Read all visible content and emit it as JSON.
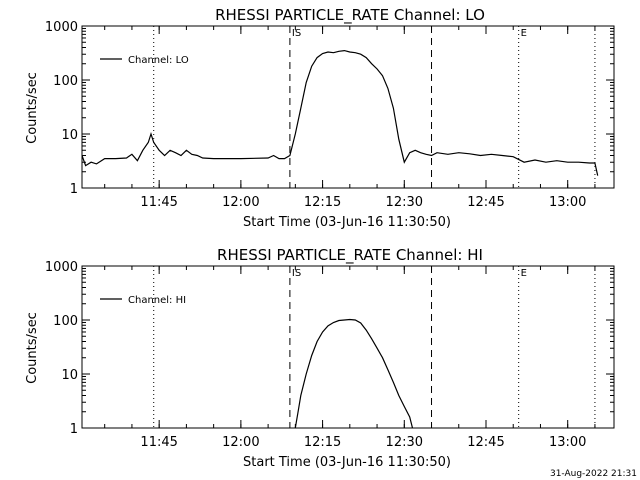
{
  "footer": {
    "timestamp": "31-Aug-2022 21:31"
  },
  "chart_data": [
    {
      "type": "line",
      "title": "RHESSI PARTICLE_RATE Channel: LO",
      "xlabel": "Start Time (03-Jun-16 11:30:50)",
      "ylabel": "Counts/sec",
      "yscale": "log",
      "ylim": [
        1,
        1000
      ],
      "xlim": [
        "11:30:50",
        "13:08:30"
      ],
      "x_ticks": [
        "11:45",
        "12:00",
        "12:15",
        "12:30",
        "12:45",
        "13:00"
      ],
      "y_ticks": [
        "1",
        "10",
        "100",
        "1000"
      ],
      "legend": {
        "position": "top-left",
        "entries": [
          "Channel: LO"
        ]
      },
      "markers": [
        {
          "label": "IS",
          "time": "12:09:00",
          "style": "dashed"
        },
        {
          "label": "",
          "time": "12:35:00",
          "style": "dashed"
        },
        {
          "label": "",
          "time": "11:44:00",
          "style": "dotted"
        },
        {
          "label": "E",
          "time": "12:51:00",
          "style": "dotted"
        },
        {
          "label": "",
          "time": "13:05:00",
          "style": "dotted"
        }
      ],
      "series": [
        {
          "name": "Channel: LO",
          "x": [
            "11:30:50",
            "11:31:30",
            "11:32:30",
            "11:33:30",
            "11:35:00",
            "11:37:00",
            "11:39:00",
            "11:40:00",
            "11:41:00",
            "11:42:00",
            "11:43:00",
            "11:43:30",
            "11:44:00",
            "11:45:00",
            "11:46:00",
            "11:47:00",
            "11:48:00",
            "11:49:00",
            "11:50:00",
            "11:51:00",
            "11:52:00",
            "11:53:00",
            "11:55:00",
            "12:00:00",
            "12:05:00",
            "12:06:00",
            "12:07:00",
            "12:08:00",
            "12:09:00",
            "12:10:00",
            "12:11:00",
            "12:12:00",
            "12:13:00",
            "12:14:00",
            "12:15:00",
            "12:16:00",
            "12:17:00",
            "12:18:00",
            "12:19:00",
            "12:20:00",
            "12:21:00",
            "12:22:00",
            "12:23:00",
            "12:24:00",
            "12:25:00",
            "12:26:00",
            "12:27:00",
            "12:28:00",
            "12:29:00",
            "12:30:00",
            "12:31:00",
            "12:32:00",
            "12:33:00",
            "12:34:00",
            "12:35:00",
            "12:36:00",
            "12:38:00",
            "12:40:00",
            "12:42:00",
            "12:44:00",
            "12:46:00",
            "12:48:00",
            "12:50:00",
            "12:52:00",
            "12:54:00",
            "12:56:00",
            "12:58:00",
            "13:00:00",
            "13:02:00",
            "13:04:00",
            "13:05:00",
            "13:05:30"
          ],
          "y": [
            4,
            2.6,
            3,
            2.8,
            3.5,
            3.5,
            3.6,
            4.2,
            3.2,
            5,
            7,
            10,
            7,
            5,
            4,
            5,
            4.5,
            4,
            5,
            4.2,
            4,
            3.6,
            3.5,
            3.5,
            3.6,
            4,
            3.5,
            3.5,
            4,
            10,
            30,
            90,
            180,
            260,
            310,
            330,
            320,
            340,
            350,
            330,
            320,
            300,
            260,
            200,
            160,
            120,
            70,
            30,
            8,
            3,
            4.5,
            5,
            4.5,
            4.2,
            4,
            4.5,
            4.2,
            4.5,
            4.3,
            4,
            4.2,
            4,
            3.8,
            3,
            3.3,
            3,
            3.2,
            3,
            3,
            2.9,
            2.9,
            1.7
          ]
        }
      ]
    },
    {
      "type": "line",
      "title": "RHESSI PARTICLE_RATE Channel: HI",
      "xlabel": "Start Time (03-Jun-16 11:30:50)",
      "ylabel": "Counts/sec",
      "yscale": "log",
      "ylim": [
        1,
        1000
      ],
      "xlim": [
        "11:30:50",
        "13:08:30"
      ],
      "x_ticks": [
        "11:45",
        "12:00",
        "12:15",
        "12:30",
        "12:45",
        "13:00"
      ],
      "y_ticks": [
        "1",
        "10",
        "100",
        "1000"
      ],
      "legend": {
        "position": "top-left",
        "entries": [
          "Channel: HI"
        ]
      },
      "markers": [
        {
          "label": "IS",
          "time": "12:09:00",
          "style": "dashed"
        },
        {
          "label": "",
          "time": "12:35:00",
          "style": "dashed"
        },
        {
          "label": "",
          "time": "11:44:00",
          "style": "dotted"
        },
        {
          "label": "E",
          "time": "12:51:00",
          "style": "dotted"
        },
        {
          "label": "",
          "time": "13:05:00",
          "style": "dotted"
        }
      ],
      "series": [
        {
          "name": "Channel: HI",
          "x": [
            "12:10:00",
            "12:10:30",
            "12:11:00",
            "12:12:00",
            "12:13:00",
            "12:14:00",
            "12:15:00",
            "12:16:00",
            "12:17:00",
            "12:18:00",
            "12:19:00",
            "12:20:00",
            "12:21:00",
            "12:22:00",
            "12:23:00",
            "12:24:00",
            "12:25:00",
            "12:26:00",
            "12:27:00",
            "12:28:00",
            "12:29:00",
            "12:30:00",
            "12:31:00",
            "12:31:30"
          ],
          "y": [
            1,
            2,
            4,
            10,
            22,
            40,
            60,
            78,
            90,
            98,
            100,
            102,
            100,
            88,
            65,
            45,
            30,
            20,
            12,
            7,
            4,
            2.5,
            1.6,
            1
          ]
        }
      ]
    }
  ]
}
